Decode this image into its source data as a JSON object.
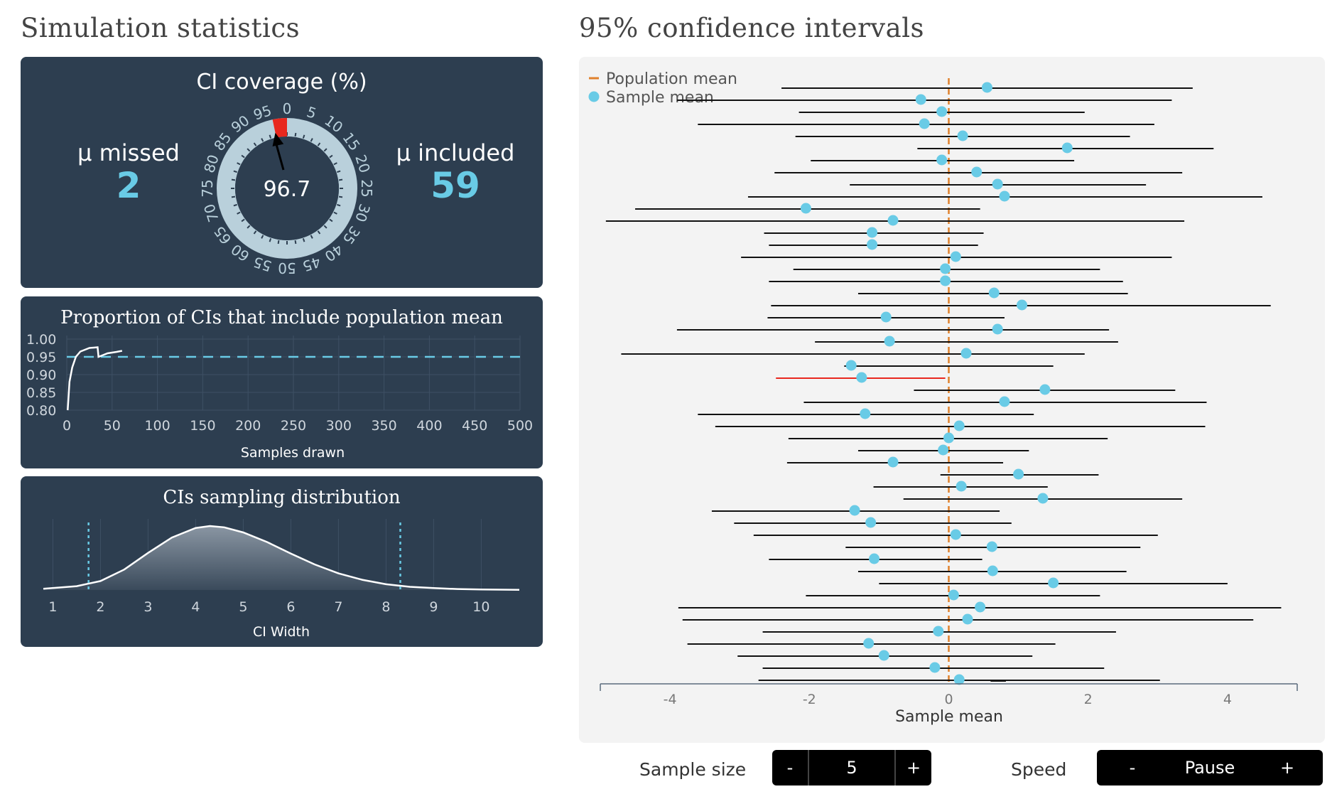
{
  "left_title": "Simulation statistics",
  "right_title": "95% confidence intervals",
  "coverage": {
    "title": "CI coverage (%)",
    "value": "96.7",
    "missed_label": "μ missed",
    "missed_value": "2",
    "included_label": "μ included",
    "included_value": "59",
    "dial_ticks": [
      "0",
      "5",
      "10",
      "15",
      "20",
      "25",
      "30",
      "35",
      "40",
      "45",
      "50",
      "55",
      "60",
      "65",
      "70",
      "75",
      "80",
      "85",
      "90",
      "95"
    ],
    "coverage_fraction": 0.967,
    "colors": {
      "ring": "#b9d0db",
      "highlight": "#e8281e",
      "arrow": "#000000"
    }
  },
  "proportion_chart": {
    "title": "Proportion of CIs that include population mean",
    "xlabel": "Samples drawn",
    "x_ticks": [
      "0",
      "50",
      "100",
      "150",
      "200",
      "250",
      "300",
      "350",
      "400",
      "450",
      "500"
    ],
    "y_ticks": [
      "1.00",
      "0.95",
      "0.90",
      "0.85",
      "0.80"
    ]
  },
  "distribution_chart": {
    "title": "CIs sampling distribution",
    "xlabel": "CI Width",
    "x_ticks": [
      "1",
      "2",
      "3",
      "4",
      "5",
      "6",
      "7",
      "8",
      "9",
      "10"
    ]
  },
  "ci_legend": {
    "population_mean": "Population mean",
    "sample_mean": "Sample mean"
  },
  "ci_axis": {
    "xlabel": "Sample mean",
    "ticks": [
      "-4",
      "-2",
      "0",
      "2",
      "4"
    ]
  },
  "controls": {
    "sample_size_label": "Sample size",
    "sample_size_value": "5",
    "minus": "-",
    "plus": "+",
    "speed_label": "Speed",
    "speed_value": "Pause"
  },
  "chart_data": [
    {
      "type": "line",
      "title": "Proportion of CIs that include population mean",
      "xlabel": "Samples drawn",
      "ylabel": "",
      "xlim": [
        0,
        500
      ],
      "ylim": [
        0.8,
        1.0
      ],
      "reference_line": 0.95,
      "series": [
        {
          "x": [
            1,
            3,
            6,
            10,
            15,
            20,
            25,
            30,
            34,
            35,
            40,
            45,
            50,
            55,
            61
          ],
          "values": [
            0.8,
            0.88,
            0.92,
            0.95,
            0.965,
            0.97,
            0.975,
            0.976,
            0.977,
            0.95,
            0.955,
            0.96,
            0.962,
            0.964,
            0.967
          ]
        }
      ]
    },
    {
      "type": "area",
      "title": "CIs sampling distribution",
      "xlabel": "CI Width",
      "ylabel": "",
      "xlim": [
        0.8,
        10.8
      ],
      "reference_lines": [
        1.75,
        8.3
      ],
      "series": [
        {
          "x": [
            0.8,
            1.5,
            2.0,
            2.5,
            3.0,
            3.5,
            4.0,
            4.3,
            4.6,
            5.0,
            5.5,
            6.0,
            6.5,
            7.0,
            7.5,
            8.0,
            8.5,
            9.0,
            9.5,
            10.0,
            10.8
          ],
          "values": [
            0.02,
            0.06,
            0.14,
            0.32,
            0.58,
            0.82,
            0.97,
            1.0,
            0.98,
            0.9,
            0.75,
            0.57,
            0.4,
            0.26,
            0.16,
            0.09,
            0.05,
            0.03,
            0.015,
            0.008,
            0.003
          ]
        }
      ]
    },
    {
      "type": "scatter",
      "title": "95% confidence intervals",
      "xlabel": "Sample mean",
      "ylabel": "",
      "xlim": [
        -5,
        5
      ],
      "population_mean": 0,
      "intervals": [
        {
          "mean": 0.55,
          "lo": -2.4,
          "hi": 3.5,
          "included": true
        },
        {
          "mean": -0.4,
          "lo": -3.9,
          "hi": 3.2,
          "included": true
        },
        {
          "mean": -0.1,
          "lo": -2.15,
          "hi": 1.95,
          "included": true
        },
        {
          "mean": -0.35,
          "lo": -3.6,
          "hi": 2.95,
          "included": true
        },
        {
          "mean": 0.2,
          "lo": -2.2,
          "hi": 2.6,
          "included": true
        },
        {
          "mean": 1.7,
          "lo": -0.45,
          "hi": 3.8,
          "included": true
        },
        {
          "mean": -0.1,
          "lo": -1.98,
          "hi": 1.8,
          "included": true
        },
        {
          "mean": 0.4,
          "lo": -2.5,
          "hi": 3.35,
          "included": true
        },
        {
          "mean": 0.7,
          "lo": -1.42,
          "hi": 2.83,
          "included": true
        },
        {
          "mean": 0.8,
          "lo": -2.88,
          "hi": 4.5,
          "included": true
        },
        {
          "mean": -2.05,
          "lo": -4.5,
          "hi": 0.45,
          "included": true
        },
        {
          "mean": -0.8,
          "lo": -4.92,
          "hi": 3.38,
          "included": true
        },
        {
          "mean": -1.1,
          "lo": -2.65,
          "hi": 0.5,
          "included": true
        },
        {
          "mean": -1.1,
          "lo": -2.58,
          "hi": 0.42,
          "included": true
        },
        {
          "mean": 0.1,
          "lo": -2.98,
          "hi": 3.2,
          "included": true
        },
        {
          "mean": -0.05,
          "lo": -2.23,
          "hi": 2.17,
          "included": true
        },
        {
          "mean": -0.05,
          "lo": -2.58,
          "hi": 2.5,
          "included": true
        },
        {
          "mean": 0.65,
          "lo": -1.3,
          "hi": 2.57,
          "included": true
        },
        {
          "mean": 1.05,
          "lo": -2.55,
          "hi": 4.62,
          "included": true
        },
        {
          "mean": -0.9,
          "lo": -2.6,
          "hi": 0.8,
          "included": true
        },
        {
          "mean": 0.7,
          "lo": -3.9,
          "hi": 2.3,
          "included": true
        },
        {
          "mean": -0.85,
          "lo": -1.92,
          "hi": 2.43,
          "included": true
        },
        {
          "mean": 0.25,
          "lo": -4.7,
          "hi": 1.95,
          "included": true
        },
        {
          "mean": -1.4,
          "lo": -1.5,
          "hi": 1.5,
          "included": true
        },
        {
          "mean": -1.25,
          "lo": -2.48,
          "hi": -0.05,
          "included": false
        },
        {
          "mean": 1.38,
          "lo": -0.5,
          "hi": 3.25,
          "included": true
        },
        {
          "mean": 0.8,
          "lo": -2.08,
          "hi": 3.7,
          "included": true
        },
        {
          "mean": -1.2,
          "lo": -3.6,
          "hi": 1.22,
          "included": true
        },
        {
          "mean": 0.15,
          "lo": -3.35,
          "hi": 3.68,
          "included": true
        },
        {
          "mean": 0.0,
          "lo": -2.3,
          "hi": 2.28,
          "included": true
        },
        {
          "mean": -0.08,
          "lo": -1.3,
          "hi": 1.15,
          "included": true
        },
        {
          "mean": -0.8,
          "lo": -2.32,
          "hi": 0.78,
          "included": true
        },
        {
          "mean": 1.0,
          "lo": -0.12,
          "hi": 2.15,
          "included": true
        },
        {
          "mean": 0.18,
          "lo": -1.08,
          "hi": 1.42,
          "included": true
        },
        {
          "mean": 1.35,
          "lo": -0.65,
          "hi": 3.35,
          "included": true
        },
        {
          "mean": -1.35,
          "lo": -3.4,
          "hi": 0.73,
          "included": true
        },
        {
          "mean": -1.12,
          "lo": -3.08,
          "hi": 0.9,
          "included": true
        },
        {
          "mean": 0.1,
          "lo": -2.8,
          "hi": 3.0,
          "included": true
        },
        {
          "mean": 0.62,
          "lo": -1.48,
          "hi": 2.75,
          "included": true
        },
        {
          "mean": -1.07,
          "lo": -2.58,
          "hi": 0.48,
          "included": true
        },
        {
          "mean": 0.63,
          "lo": -1.3,
          "hi": 2.55,
          "included": true
        },
        {
          "mean": 1.5,
          "lo": -1.0,
          "hi": 4.0,
          "included": true
        },
        {
          "mean": 0.07,
          "lo": -2.05,
          "hi": 2.17,
          "included": true
        },
        {
          "mean": 0.45,
          "lo": -3.88,
          "hi": 4.77,
          "included": true
        },
        {
          "mean": 0.27,
          "lo": -3.82,
          "hi": 4.37,
          "included": true
        },
        {
          "mean": -0.15,
          "lo": -2.67,
          "hi": 2.4,
          "included": true
        },
        {
          "mean": -1.15,
          "lo": -3.75,
          "hi": 1.53,
          "included": true
        },
        {
          "mean": -0.93,
          "lo": -3.03,
          "hi": 1.2,
          "included": true
        },
        {
          "mean": -0.2,
          "lo": -2.67,
          "hi": 2.23,
          "included": true
        },
        {
          "mean": 0.15,
          "lo": -2.73,
          "hi": 3.03,
          "included": true
        }
      ]
    }
  ]
}
